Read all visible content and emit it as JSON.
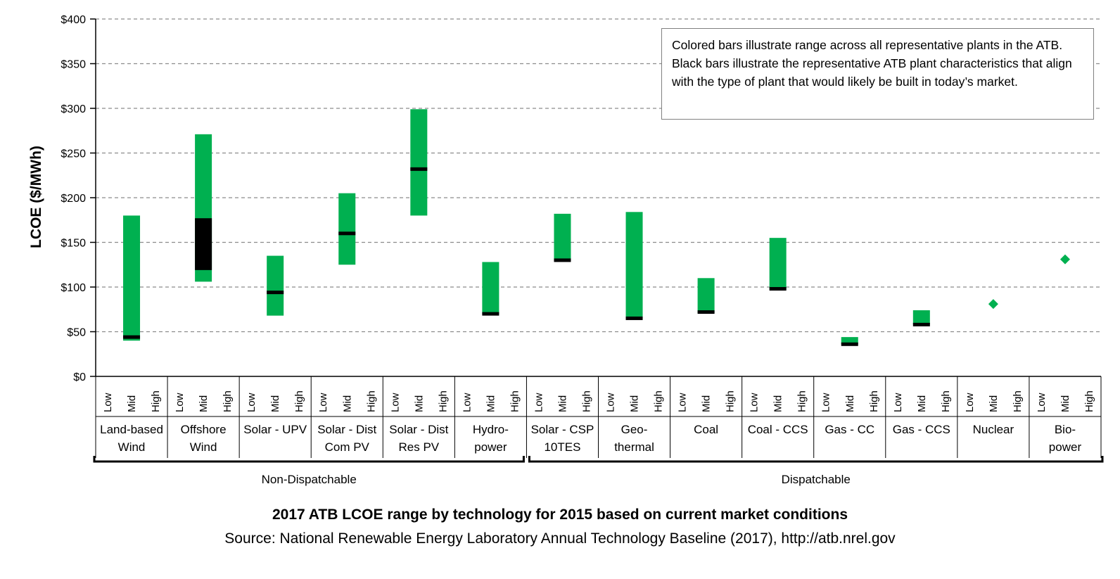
{
  "chart_data": {
    "type": "bar",
    "subtype": "floating-range",
    "title": "2017 ATB LCOE range by technology for 2015 based on current market conditions",
    "source": "Source: National Renewable Energy Laboratory Annual Technology Baseline (2017),  http://atb.nrel.gov",
    "ylabel": "LCOE ($/MWh)",
    "ylim": [
      0,
      400
    ],
    "yticks": [
      "$0",
      "$50",
      "$100",
      "$150",
      "$200",
      "$250",
      "$300",
      "$350",
      "$400"
    ],
    "grid": true,
    "sub_categories": [
      "Low",
      "Mid",
      "High"
    ],
    "note": "Colored bars illustrate range across all representative plants in the ATB. Black bars illustrate the representative ATB plant characteristics that align with the type of plant that would likely be built in today’s market.",
    "colors": {
      "range": "#00b050",
      "representative": "#000000",
      "grid": "#8c8c8c",
      "axis": "#000000"
    },
    "groups": [
      {
        "name": "Non-Dispatchable",
        "first": 0,
        "last": 5
      },
      {
        "name": "Dispatchable",
        "first": 6,
        "last": 13
      }
    ],
    "technologies": [
      {
        "label_lines": [
          "Land-based",
          "Wind"
        ],
        "min": 40,
        "max": 180,
        "rep_min": 44,
        "rep_max": 44
      },
      {
        "label_lines": [
          "Offshore",
          "Wind"
        ],
        "min": 106,
        "max": 271,
        "rep_min": 119,
        "rep_max": 177
      },
      {
        "label_lines": [
          "Solar - UPV"
        ],
        "min": 68,
        "max": 135,
        "rep_min": 94,
        "rep_max": 94
      },
      {
        "label_lines": [
          "Solar - Dist",
          "Com PV"
        ],
        "min": 125,
        "max": 205,
        "rep_min": 160,
        "rep_max": 160
      },
      {
        "label_lines": [
          "Solar - Dist",
          "Res PV"
        ],
        "min": 180,
        "max": 299,
        "rep_min": 232,
        "rep_max": 232
      },
      {
        "label_lines": [
          "Hydro-",
          "power"
        ],
        "min": 70,
        "max": 128,
        "rep_min": 70,
        "rep_max": 70
      },
      {
        "label_lines": [
          "Solar - CSP",
          "10TES"
        ],
        "min": 130,
        "max": 182,
        "rep_min": 130,
        "rep_max": 130
      },
      {
        "label_lines": [
          "Geo-",
          "thermal"
        ],
        "min": 65,
        "max": 184,
        "rep_min": 65,
        "rep_max": 65
      },
      {
        "label_lines": [
          "Coal"
        ],
        "min": 71,
        "max": 110,
        "rep_min": 72,
        "rep_max": 72
      },
      {
        "label_lines": [
          "Coal - CCS"
        ],
        "min": 97,
        "max": 155,
        "rep_min": 98,
        "rep_max": 98
      },
      {
        "label_lines": [
          "Gas - CC"
        ],
        "min": 36,
        "max": 44,
        "rep_min": 36,
        "rep_max": 36
      },
      {
        "label_lines": [
          "Gas - CCS"
        ],
        "min": 58,
        "max": 74,
        "rep_min": 58,
        "rep_max": 58
      },
      {
        "label_lines": [
          "Nuclear"
        ],
        "point": 81
      },
      {
        "label_lines": [
          "Bio-",
          "power"
        ],
        "point": 131
      }
    ]
  }
}
